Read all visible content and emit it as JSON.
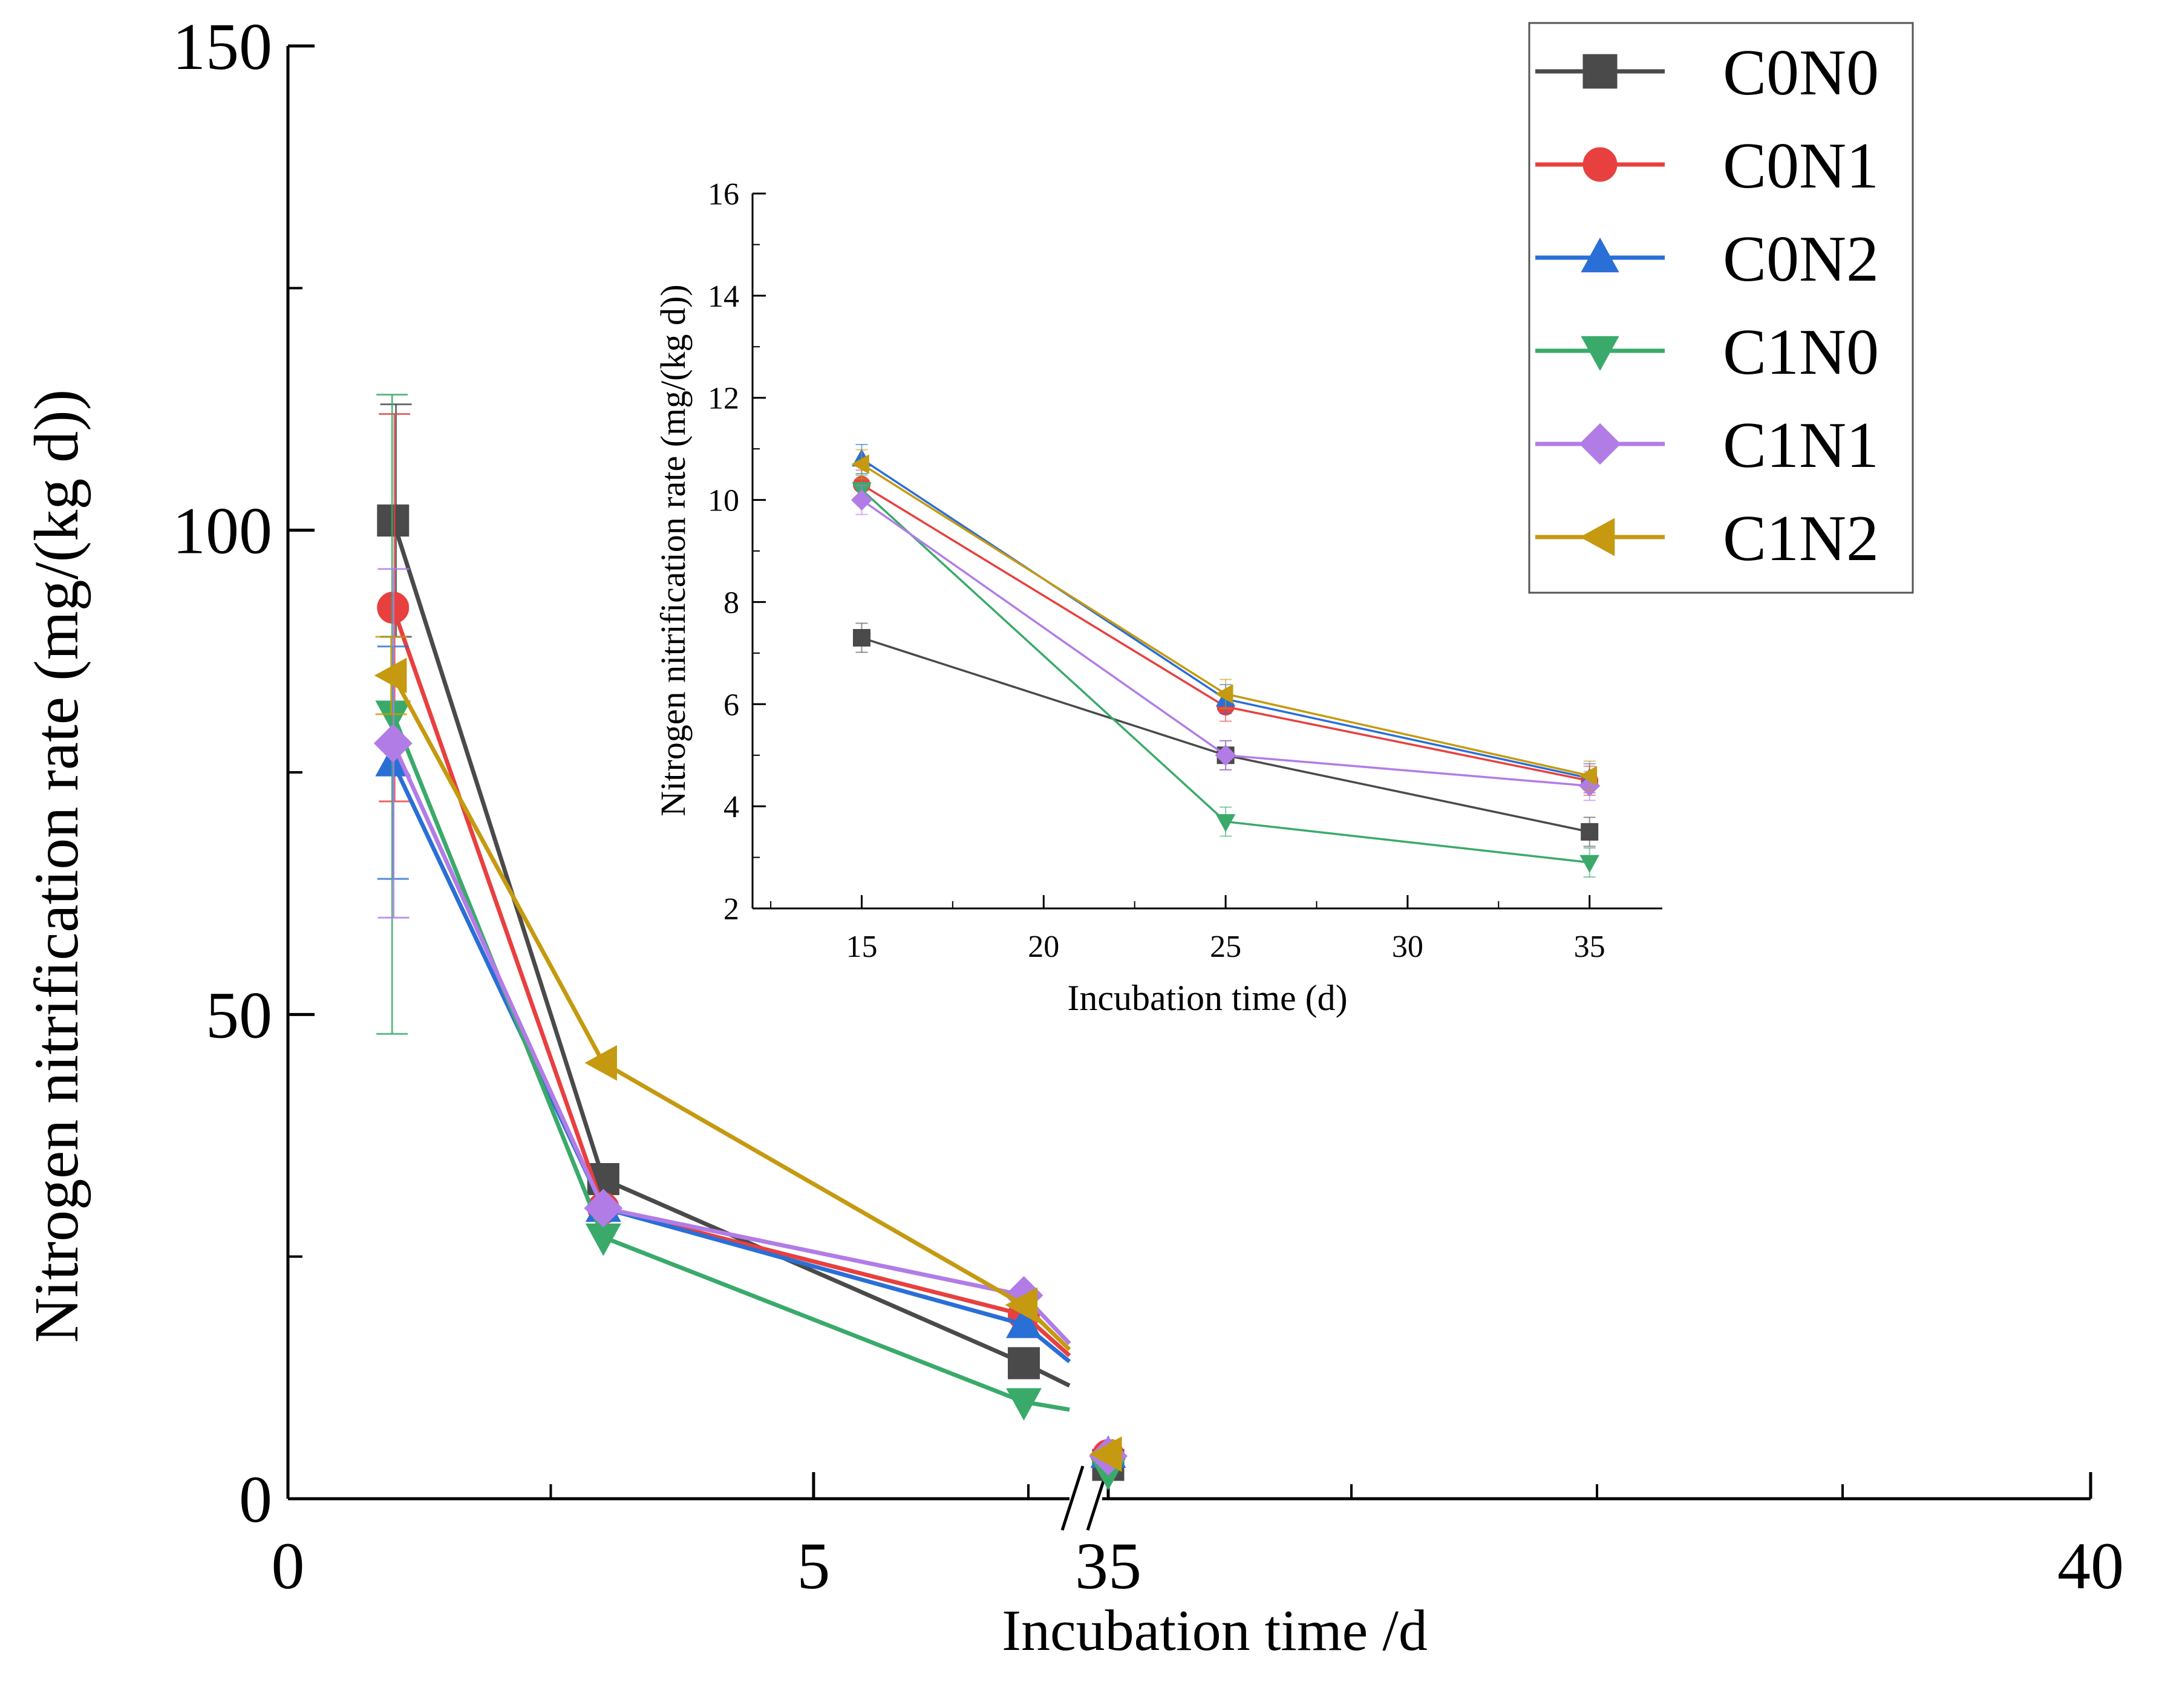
{
  "chart_data": [
    {
      "id": "main",
      "type": "line",
      "title": "",
      "xlabel": "Incubation time /d",
      "ylabel": "Nitrogen nitrification rate (mg/(kg d))",
      "xlim": [
        0,
        40
      ],
      "ylim": [
        0,
        150
      ],
      "x_axis_break": "between 7 and 35 (x range 7–35 compressed)",
      "x_tick_labels": [
        "0",
        "5",
        "35",
        "40"
      ],
      "y_tick_labels": [
        "0",
        "50",
        "100",
        "150"
      ],
      "legend_position": "top-right",
      "series": [
        {
          "name": "C0N0",
          "marker": "square",
          "x": [
            1,
            3,
            7,
            35
          ],
          "y": [
            101,
            33,
            14,
            3.5
          ],
          "error_day1": 12
        },
        {
          "name": "C0N1",
          "marker": "circle",
          "x": [
            1,
            3,
            7,
            35
          ],
          "y": [
            92,
            30,
            19,
            4.5
          ],
          "error_day1": 20
        },
        {
          "name": "C0N2",
          "marker": "triangle-up",
          "x": [
            1,
            3,
            7,
            35
          ],
          "y": [
            76,
            30,
            18,
            4.6
          ],
          "error_day1": 12
        },
        {
          "name": "C1N0",
          "marker": "triangle-down",
          "x": [
            1,
            3,
            7,
            35
          ],
          "y": [
            81,
            27,
            10,
            2.8
          ],
          "error_day1": 33
        },
        {
          "name": "C1N1",
          "marker": "diamond",
          "x": [
            1,
            3,
            7,
            35
          ],
          "y": [
            78,
            30,
            21,
            4.4
          ],
          "error_day1": 18
        },
        {
          "name": "C1N2",
          "marker": "triangle-left",
          "x": [
            1,
            3,
            7,
            35
          ],
          "y": [
            85,
            45,
            20,
            4.6
          ],
          "error_day1": 4
        }
      ]
    },
    {
      "id": "inset",
      "type": "line",
      "title": "",
      "xlabel": "Incubation time (d)",
      "ylabel": "Nitrogen nitrification rate (mg/(kg d))",
      "xlim": [
        12,
        37
      ],
      "ylim": [
        2,
        16
      ],
      "x_tick_labels": [
        "15",
        "20",
        "25",
        "30",
        "35"
      ],
      "y_tick_labels": [
        "2",
        "4",
        "6",
        "8",
        "10",
        "12",
        "14",
        "16"
      ],
      "series": [
        {
          "name": "C0N0",
          "marker": "square",
          "x": [
            15,
            25,
            35
          ],
          "y": [
            7.3,
            5.0,
            3.5
          ]
        },
        {
          "name": "C0N1",
          "marker": "circle",
          "x": [
            15,
            25,
            35
          ],
          "y": [
            10.3,
            5.95,
            4.5
          ]
        },
        {
          "name": "C0N2",
          "marker": "triangle-up",
          "x": [
            15,
            25,
            35
          ],
          "y": [
            10.8,
            6.1,
            4.55
          ]
        },
        {
          "name": "C1N0",
          "marker": "triangle-down",
          "x": [
            15,
            25,
            35
          ],
          "y": [
            10.2,
            3.7,
            2.9
          ]
        },
        {
          "name": "C1N1",
          "marker": "diamond",
          "x": [
            15,
            25,
            35
          ],
          "y": [
            10.0,
            5.0,
            4.4
          ]
        },
        {
          "name": "C1N2",
          "marker": "triangle-left",
          "x": [
            15,
            25,
            35
          ],
          "y": [
            10.7,
            6.2,
            4.6
          ]
        }
      ]
    }
  ],
  "colors": {
    "C0N0": "#4a4a4a",
    "C0N1": "#e8403f",
    "C0N2": "#2a6fd6",
    "C1N0": "#3aaa6a",
    "C1N1": "#b27ce6",
    "C1N2": "#c59a10",
    "axis": "#000000"
  },
  "legend": {
    "entries": [
      "C0N0",
      "C0N1",
      "C0N2",
      "C1N0",
      "C1N1",
      "C1N2"
    ]
  }
}
